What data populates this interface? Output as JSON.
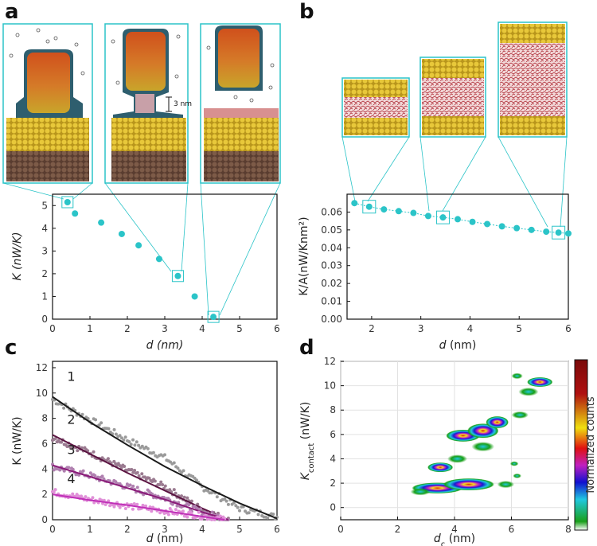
{
  "panels": {
    "a": {
      "letter": "a",
      "annotation": "3 nm",
      "chart_data": {
        "type": "scatter",
        "title": "",
        "xlabel_var": "d",
        "xlabel_unit": "(nm)",
        "ylabel_var": "K",
        "ylabel_unit": "(nW/K)",
        "xlim": [
          0,
          6
        ],
        "ylim": [
          0,
          5.5
        ],
        "xticks": [
          0,
          1,
          2,
          3,
          4,
          5,
          6
        ],
        "yticks": [
          0,
          1,
          2,
          3,
          4,
          5
        ],
        "marker_color": "#2bc4c8",
        "x": [
          0.4,
          0.6,
          1.3,
          1.85,
          2.3,
          2.85,
          3.35,
          3.8,
          4.3
        ],
        "y": [
          5.15,
          4.65,
          4.25,
          3.75,
          3.25,
          2.65,
          1.9,
          1.0,
          0.1
        ],
        "highlighted_x": [
          0.4,
          3.35,
          4.3
        ]
      }
    },
    "b": {
      "letter": "b",
      "chart_data": {
        "type": "scatter",
        "title": "",
        "xlabel_var": "d",
        "xlabel_unit": "(nm)",
        "ylabel": "K/A(nW/Knm²)",
        "xlim": [
          1.5,
          6
        ],
        "ylim": [
          0,
          0.07
        ],
        "xticks": [
          2,
          3,
          4,
          5,
          6
        ],
        "yticks": [
          "0.00",
          "0.01",
          "0.02",
          "0.03",
          "0.04",
          "0.05",
          "0.06"
        ],
        "marker_color": "#2bc4c8",
        "x": [
          1.65,
          1.95,
          2.25,
          2.55,
          2.85,
          3.15,
          3.45,
          3.75,
          4.05,
          4.35,
          4.65,
          4.95,
          5.25,
          5.55,
          5.8,
          6.0
        ],
        "y": [
          0.065,
          0.063,
          0.0615,
          0.0605,
          0.0595,
          0.0578,
          0.057,
          0.056,
          0.0545,
          0.0533,
          0.052,
          0.051,
          0.05,
          0.049,
          0.0485,
          0.048
        ],
        "highlighted_x": [
          1.95,
          3.45,
          5.8
        ]
      }
    },
    "c": {
      "letter": "c",
      "chart_data": {
        "type": "line",
        "title": "",
        "xlabel_var": "d",
        "xlabel_unit": "(nm)",
        "ylabel": "K  (nW/K)",
        "xlim": [
          0,
          6
        ],
        "ylim": [
          0,
          12.5
        ],
        "xticks": [
          0,
          1,
          2,
          3,
          4,
          5,
          6
        ],
        "yticks": [
          0,
          2,
          4,
          6,
          8,
          10,
          12
        ],
        "series": [
          {
            "name": "1",
            "color": "#1a1a1a",
            "data_color": "#9a9a9a",
            "x": [
              0,
              1,
              2,
              3,
              4,
              5,
              6
            ],
            "fit_y": [
              9.7,
              7.7,
              5.9,
              4.2,
              2.7,
              1.3,
              0.1
            ],
            "data_y": [
              9.5,
              7.9,
              6.3,
              4.9,
              2.6,
              0.9,
              0.2
            ]
          },
          {
            "name": "2",
            "color": "#5a1240",
            "data_color": "#9a7a90",
            "x": [
              0,
              1,
              2,
              3,
              4,
              4.7
            ],
            "fit_y": [
              6.7,
              5.2,
              3.7,
              2.3,
              0.9,
              0.0
            ],
            "data_y": [
              6.5,
              5.3,
              3.9,
              2.6,
              0.8,
              0.0
            ]
          },
          {
            "name": "3",
            "color": "#8a1a78",
            "data_color": "#b080b0",
            "x": [
              0,
              1,
              2,
              3,
              4,
              4.7
            ],
            "fit_y": [
              4.3,
              3.4,
              2.5,
              1.6,
              0.6,
              0.0
            ],
            "data_y": [
              4.2,
              3.5,
              2.6,
              1.7,
              0.6,
              0.0
            ]
          },
          {
            "name": "4",
            "color": "#c030b8",
            "data_color": "#e090d8",
            "x": [
              0,
              1,
              2,
              3,
              4,
              4.6
            ],
            "fit_y": [
              2.0,
              1.55,
              1.15,
              0.7,
              0.25,
              0.0
            ],
            "data_y": [
              2.2,
              1.6,
              1.1,
              0.7,
              0.3,
              0.0
            ]
          }
        ]
      }
    },
    "d": {
      "letter": "d",
      "colorbar_label": "Normalized counts",
      "chart_data": {
        "type": "heatmap",
        "title": "",
        "xlabel_var": "d",
        "xlabel_sub": "c",
        "xlabel_unit": "(nm)",
        "ylabel_var": "K",
        "ylabel_sub": "contact",
        "ylabel_unit": "(nW/K)",
        "xlim": [
          0,
          8
        ],
        "ylim": [
          -1,
          12
        ],
        "xticks": [
          0,
          2,
          4,
          6,
          8
        ],
        "yticks": [
          0,
          2,
          4,
          6,
          8,
          10,
          12
        ],
        "blobs": [
          {
            "x": 3.4,
            "y": 1.6,
            "rx": 0.9,
            "ry": 0.45,
            "level": 0.9
          },
          {
            "x": 4.5,
            "y": 1.9,
            "rx": 0.9,
            "ry": 0.5,
            "level": 0.85
          },
          {
            "x": 2.8,
            "y": 1.3,
            "rx": 0.35,
            "ry": 0.3,
            "level": 0.35
          },
          {
            "x": 5.8,
            "y": 1.9,
            "rx": 0.3,
            "ry": 0.3,
            "level": 0.3
          },
          {
            "x": 3.5,
            "y": 3.3,
            "rx": 0.45,
            "ry": 0.4,
            "level": 0.55
          },
          {
            "x": 4.1,
            "y": 4.0,
            "rx": 0.35,
            "ry": 0.35,
            "level": 0.4
          },
          {
            "x": 4.3,
            "y": 5.9,
            "rx": 0.6,
            "ry": 0.5,
            "level": 0.6
          },
          {
            "x": 5.0,
            "y": 6.3,
            "rx": 0.55,
            "ry": 0.6,
            "level": 0.95
          },
          {
            "x": 5.5,
            "y": 7.0,
            "rx": 0.4,
            "ry": 0.5,
            "level": 0.7
          },
          {
            "x": 5.0,
            "y": 5.0,
            "rx": 0.4,
            "ry": 0.4,
            "level": 0.45
          },
          {
            "x": 6.3,
            "y": 7.6,
            "rx": 0.3,
            "ry": 0.3,
            "level": 0.35
          },
          {
            "x": 6.6,
            "y": 9.5,
            "rx": 0.35,
            "ry": 0.35,
            "level": 0.45
          },
          {
            "x": 7.0,
            "y": 10.3,
            "rx": 0.45,
            "ry": 0.4,
            "level": 0.7
          },
          {
            "x": 6.2,
            "y": 10.8,
            "rx": 0.2,
            "ry": 0.25,
            "level": 0.3
          },
          {
            "x": 6.1,
            "y": 3.6,
            "rx": 0.15,
            "ry": 0.2,
            "level": 0.2
          },
          {
            "x": 6.2,
            "y": 2.6,
            "rx": 0.15,
            "ry": 0.2,
            "level": 0.2
          }
        ]
      }
    }
  },
  "colors": {
    "accent": "#2bc4c8",
    "gold": "#d6b32a",
    "brown": "#6b4a3a",
    "red_liquid": "#b0303a"
  }
}
